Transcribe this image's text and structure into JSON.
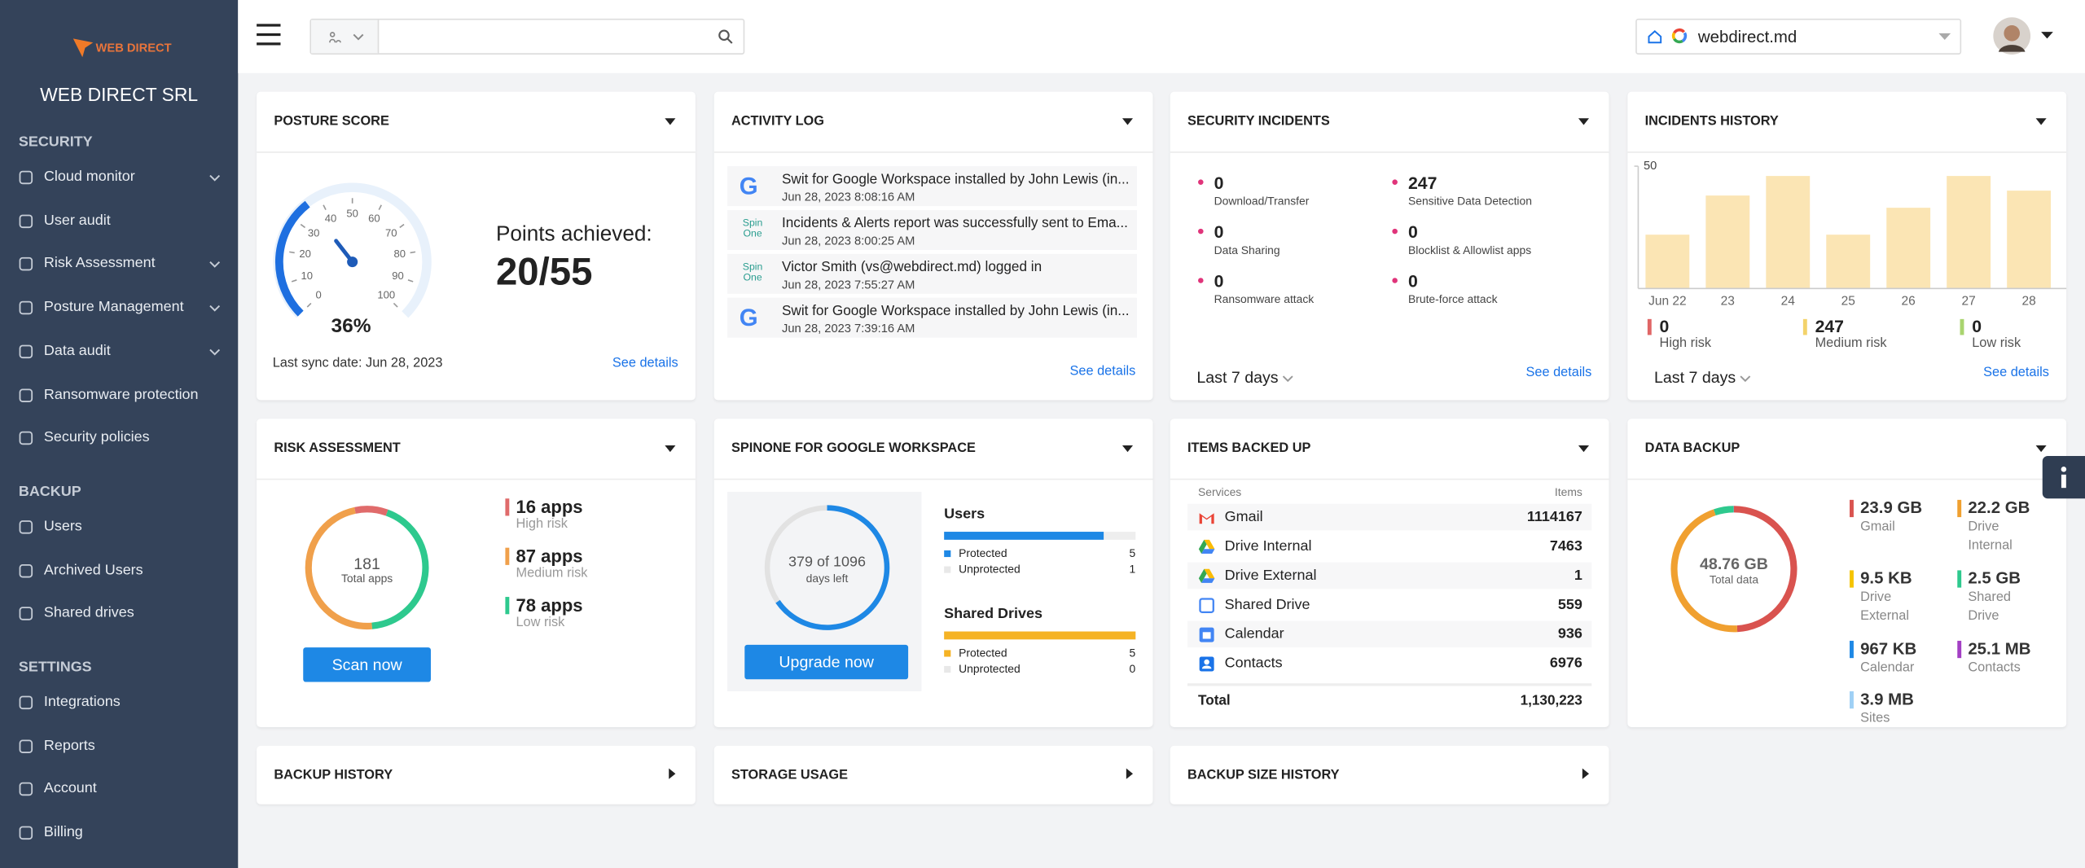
{
  "sidebar": {
    "logo": "WEB DIRECT",
    "company": "WEB DIRECT SRL",
    "sections": [
      {
        "title": "SECURITY",
        "items": [
          {
            "label": "Cloud monitor",
            "submenu": true
          },
          {
            "label": "User audit"
          },
          {
            "label": "Risk Assessment",
            "submenu": true
          },
          {
            "label": "Posture Management",
            "submenu": true
          },
          {
            "label": "Data audit",
            "submenu": true
          },
          {
            "label": "Ransomware protection"
          },
          {
            "label": "Security policies"
          }
        ]
      },
      {
        "title": "BACKUP",
        "items": [
          {
            "label": "Users"
          },
          {
            "label": "Archived Users"
          },
          {
            "label": "Shared drives"
          }
        ]
      },
      {
        "title": "SETTINGS",
        "items": [
          {
            "label": "Integrations"
          },
          {
            "label": "Reports"
          },
          {
            "label": "Account"
          },
          {
            "label": "Billing"
          }
        ]
      }
    ]
  },
  "topbar": {
    "domain": "webdirect.md"
  },
  "posture_score": {
    "title": "POSTURE SCORE",
    "gauge_ticks": [
      0,
      10,
      20,
      30,
      40,
      50,
      60,
      70,
      80,
      90,
      100
    ],
    "score": 36,
    "score_label": "36%",
    "points_label": "Points achieved:",
    "points": "20/55",
    "sync_date": "Last sync date: Jun 28, 2023",
    "link": "See details"
  },
  "activity_log": {
    "title": "ACTIVITY LOG",
    "entries": [
      {
        "icon": "G",
        "text": "Swit for Google Workspace installed by John Lewis (in...",
        "time": "Jun 28, 2023 8:08:16 AM"
      },
      {
        "icon": "Spin One",
        "text": "Incidents & Alerts report was successfully sent to Ema...",
        "time": "Jun 28, 2023 8:00:25 AM"
      },
      {
        "icon": "Spin One",
        "text": "Victor Smith (vs@webdirect.md) logged in",
        "time": "Jun 28, 2023 7:55:27 AM"
      },
      {
        "icon": "G",
        "text": "Swit for Google Workspace installed by John Lewis (in...",
        "time": "Jun 28, 2023 7:39:16 AM"
      }
    ],
    "link": "See details"
  },
  "security_incidents": {
    "title": "SECURITY INCIDENTS",
    "items": [
      {
        "value": 0,
        "label": "Download/Transfer"
      },
      {
        "value": 0,
        "label": "Data Sharing"
      },
      {
        "value": 0,
        "label": "Ransomware attack"
      },
      {
        "value": 247,
        "label": "Sensitive Data Detection"
      },
      {
        "value": 0,
        "label": "Blocklist & Allowlist apps"
      },
      {
        "value": 0,
        "label": "Brute-force attack"
      }
    ],
    "range": "Last 7 days",
    "link": "See details"
  },
  "incidents_history": {
    "title": "INCIDENTS HISTORY",
    "ylim": [
      0,
      50
    ],
    "yticks": [
      50
    ],
    "categories": [
      "Jun 22",
      "23",
      "24",
      "25",
      "26",
      "27",
      "28"
    ],
    "values": [
      22,
      38,
      46,
      22,
      33,
      46,
      40
    ],
    "color": "#fbe5b4",
    "risks": [
      {
        "value": 0,
        "label": "High risk",
        "color": "#e06666"
      },
      {
        "value": 247,
        "label": "Medium risk",
        "color": "#f3d36b"
      },
      {
        "value": 0,
        "label": "Low risk",
        "color": "#a9d46f"
      }
    ],
    "range": "Last 7 days",
    "link": "See details"
  },
  "risk_assessment": {
    "title": "RISK ASSESSMENT",
    "total": 181,
    "total_label": "Total apps",
    "levels": [
      {
        "count": 16,
        "count_label": "16 apps",
        "label": "High risk",
        "color": "#e06b6b"
      },
      {
        "count": 87,
        "count_label": "87 apps",
        "label": "Medium risk",
        "color": "#f0a04b"
      },
      {
        "count": 78,
        "count_label": "78 apps",
        "label": "Low risk",
        "color": "#2ec98e"
      }
    ],
    "button": "Scan now"
  },
  "spinone": {
    "title": "SPINONE FOR GOOGLE WORKSPACE",
    "days_left": 379,
    "days_total": 1096,
    "days_label": "379 of 1096",
    "days_caption": "days left",
    "button": "Upgrade now",
    "groups": [
      {
        "name": "Users",
        "color": "#1e88e5",
        "protected_label": "Protected",
        "protected": 5,
        "unprotected_label": "Unprotected",
        "unprotected": 1
      },
      {
        "name": "Shared Drives",
        "color": "#f5b325",
        "protected_label": "Protected",
        "protected": 5,
        "unprotected_label": "Unprotected",
        "unprotected": 0
      }
    ]
  },
  "items_backed_up": {
    "title": "ITEMS BACKED UP",
    "columns": [
      "Services",
      "Items"
    ],
    "rows": [
      [
        "Gmail",
        1114167
      ],
      [
        "Drive Internal",
        7463
      ],
      [
        "Drive External",
        1
      ],
      [
        "Shared Drive",
        559
      ],
      [
        "Calendar",
        936
      ],
      [
        "Contacts",
        6976
      ]
    ],
    "total_label": "Total",
    "total": "1,130,223"
  },
  "data_backup": {
    "title": "DATA BACKUP",
    "total": "48.76 GB",
    "total_label": "Total data",
    "items": [
      {
        "size": "23.9 GB",
        "value": 23.9,
        "label": "Gmail",
        "color": "#d9534f"
      },
      {
        "size": "22.2 GB",
        "value": 22.2,
        "label": "Drive Internal",
        "color": "#f0a030"
      },
      {
        "size": "9.5 KB",
        "value": 9.5e-06,
        "label": "Drive External",
        "color": "#f5c400"
      },
      {
        "size": "2.5 GB",
        "value": 2.5,
        "label": "Shared Drive",
        "color": "#2ec98e"
      },
      {
        "size": "967 KB",
        "value": 0.000967,
        "label": "Calendar",
        "color": "#1e88e5"
      },
      {
        "size": "25.1 MB",
        "value": 0.0251,
        "label": "Contacts",
        "color": "#a33fc4"
      },
      {
        "size": "3.9 MB",
        "value": 0.0039,
        "label": "Sites",
        "color": "#9fd0f5"
      }
    ]
  },
  "bottom_panels": [
    "BACKUP HISTORY",
    "STORAGE USAGE",
    "BACKUP SIZE HISTORY"
  ]
}
